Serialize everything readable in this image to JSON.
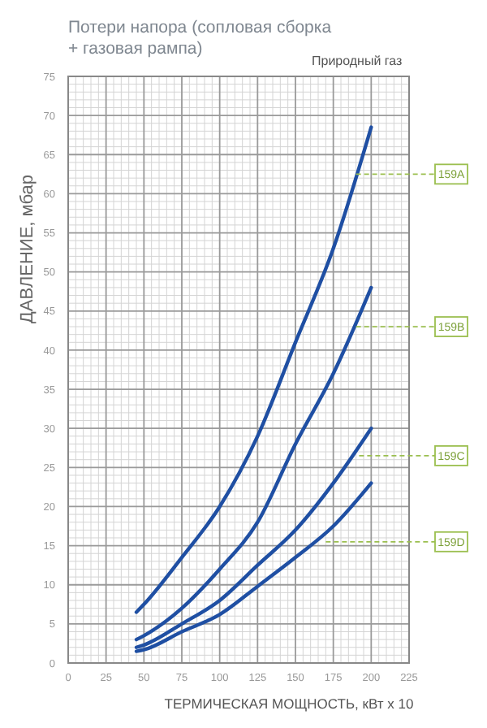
{
  "chart_data": {
    "type": "line",
    "title": "Потери напора (сопловая сборка + газовая рампа)",
    "subtitle": "Природный газ",
    "xlabel": "ТЕРМИЧЕСКАЯ МОЩНОСТЬ, кВт x 10",
    "ylabel": "ДАВЛЕНИЕ, мбар",
    "x": [
      45,
      50,
      75,
      100,
      125,
      150,
      175,
      200
    ],
    "series": [
      {
        "color": "#1f4fa3",
        "values": [
          6.5,
          7.5,
          13.5,
          20,
          29,
          41,
          53,
          68.5
        ]
      },
      {
        "color": "#1f4fa3",
        "values": [
          3,
          3.5,
          7,
          12,
          18,
          28,
          37,
          48
        ]
      },
      {
        "color": "#1f4fa3",
        "values": [
          2,
          2.3,
          5,
          8,
          12.5,
          17,
          23,
          30
        ]
      },
      {
        "color": "#1f4fa3",
        "values": [
          1.5,
          1.7,
          4,
          6.2,
          9.8,
          13.5,
          17.5,
          23
        ]
      }
    ],
    "xlim": [
      0,
      225
    ],
    "ylim": [
      0,
      75
    ],
    "xticks": [
      0,
      {
        "value": 5,
        "label": null
      },
      {
        "value": 10,
        "label": null
      },
      {
        "value": 15,
        "label": null
      },
      {
        "value": 20,
        "label": null
      },
      25,
      {
        "value": 30,
        "label": null
      },
      {
        "value": 35,
        "label": null
      },
      {
        "value": 40,
        "label": null
      },
      {
        "value": 45,
        "label": null
      },
      50,
      {
        "value": 55,
        "label": null
      },
      {
        "value": 60,
        "label": null
      },
      {
        "value": 65,
        "label": null
      },
      {
        "value": 70,
        "label": null
      },
      75,
      {
        "value": 80,
        "label": null
      },
      {
        "value": 85,
        "label": null
      },
      {
        "value": 90,
        "label": null
      },
      {
        "value": 95,
        "label": null
      },
      100,
      {
        "value": 105,
        "label": null
      },
      {
        "value": 110,
        "label": null
      },
      {
        "value": 115,
        "label": null
      },
      {
        "value": 120,
        "label": null
      },
      125,
      {
        "value": 130,
        "label": null
      },
      {
        "value": 135,
        "label": null
      },
      {
        "value": 140,
        "label": null
      },
      {
        "value": 145,
        "label": null
      },
      150,
      {
        "value": 155,
        "label": null
      },
      {
        "value": 160,
        "label": null
      },
      {
        "value": 165,
        "label": null
      },
      {
        "value": 170,
        "label": null
      },
      175,
      {
        "value": 180,
        "label": null
      },
      {
        "value": 185,
        "label": null
      },
      {
        "value": 190,
        "label": null
      },
      {
        "value": 195,
        "label": null
      },
      200,
      {
        "value": 205,
        "label": null
      },
      {
        "value": 210,
        "label": null
      },
      {
        "value": 215,
        "label": null
      },
      {
        "value": 220,
        "label": null
      },
      225
    ],
    "yticks": [
      0,
      5,
      10,
      15,
      20,
      25,
      30,
      35,
      40,
      45,
      50,
      55,
      60,
      65,
      70,
      75
    ],
    "grid": true,
    "marker": "none",
    "line_style": "solid",
    "annotations": [
      {
        "text": "159A",
        "x": 190,
        "y": 62.5
      },
      {
        "text": "159B",
        "x": 190,
        "y": 43
      },
      {
        "text": "159C",
        "x": 192,
        "y": 26.5
      },
      {
        "text": "159D",
        "x": 170,
        "y": 15.5
      }
    ]
  }
}
